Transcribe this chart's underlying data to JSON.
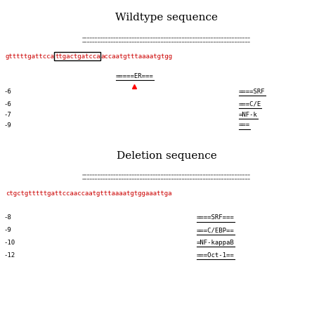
{
  "title1": "Wildtype sequence",
  "title2": "Deletion sequence",
  "wt_seq_before_box": "gtttttgattcca",
  "wt_seq_boxed": "ttgactgatcca",
  "wt_seq_after_box": "accaatgtttaaaatgtgg",
  "del_seq": "ctgctgtttttgattccaaccaatgtttaaaatgtggaaattga",
  "wt_left_numbers": [
    "-6",
    "-6",
    "-7",
    "-9"
  ],
  "del_left_numbers": [
    "-8",
    "-9",
    "-10",
    "-12"
  ],
  "wt_tf_labels": [
    "====SRF",
    "===C/E",
    "=NF-k",
    "==="
  ],
  "del_tf_labels": [
    "====SRF===",
    "===C/EBP==",
    "=NF-kappaB",
    "===Oct-1=="
  ],
  "wt_er_label": "=====ER===",
  "seq_color": "#cc0000",
  "text_color": "#000000",
  "dash_line": "================================================================",
  "font_size_title": 11,
  "font_size_seq": 6.5,
  "font_size_tf": 6.5,
  "font_size_num": 6.5,
  "font_size_dash": 4.5
}
